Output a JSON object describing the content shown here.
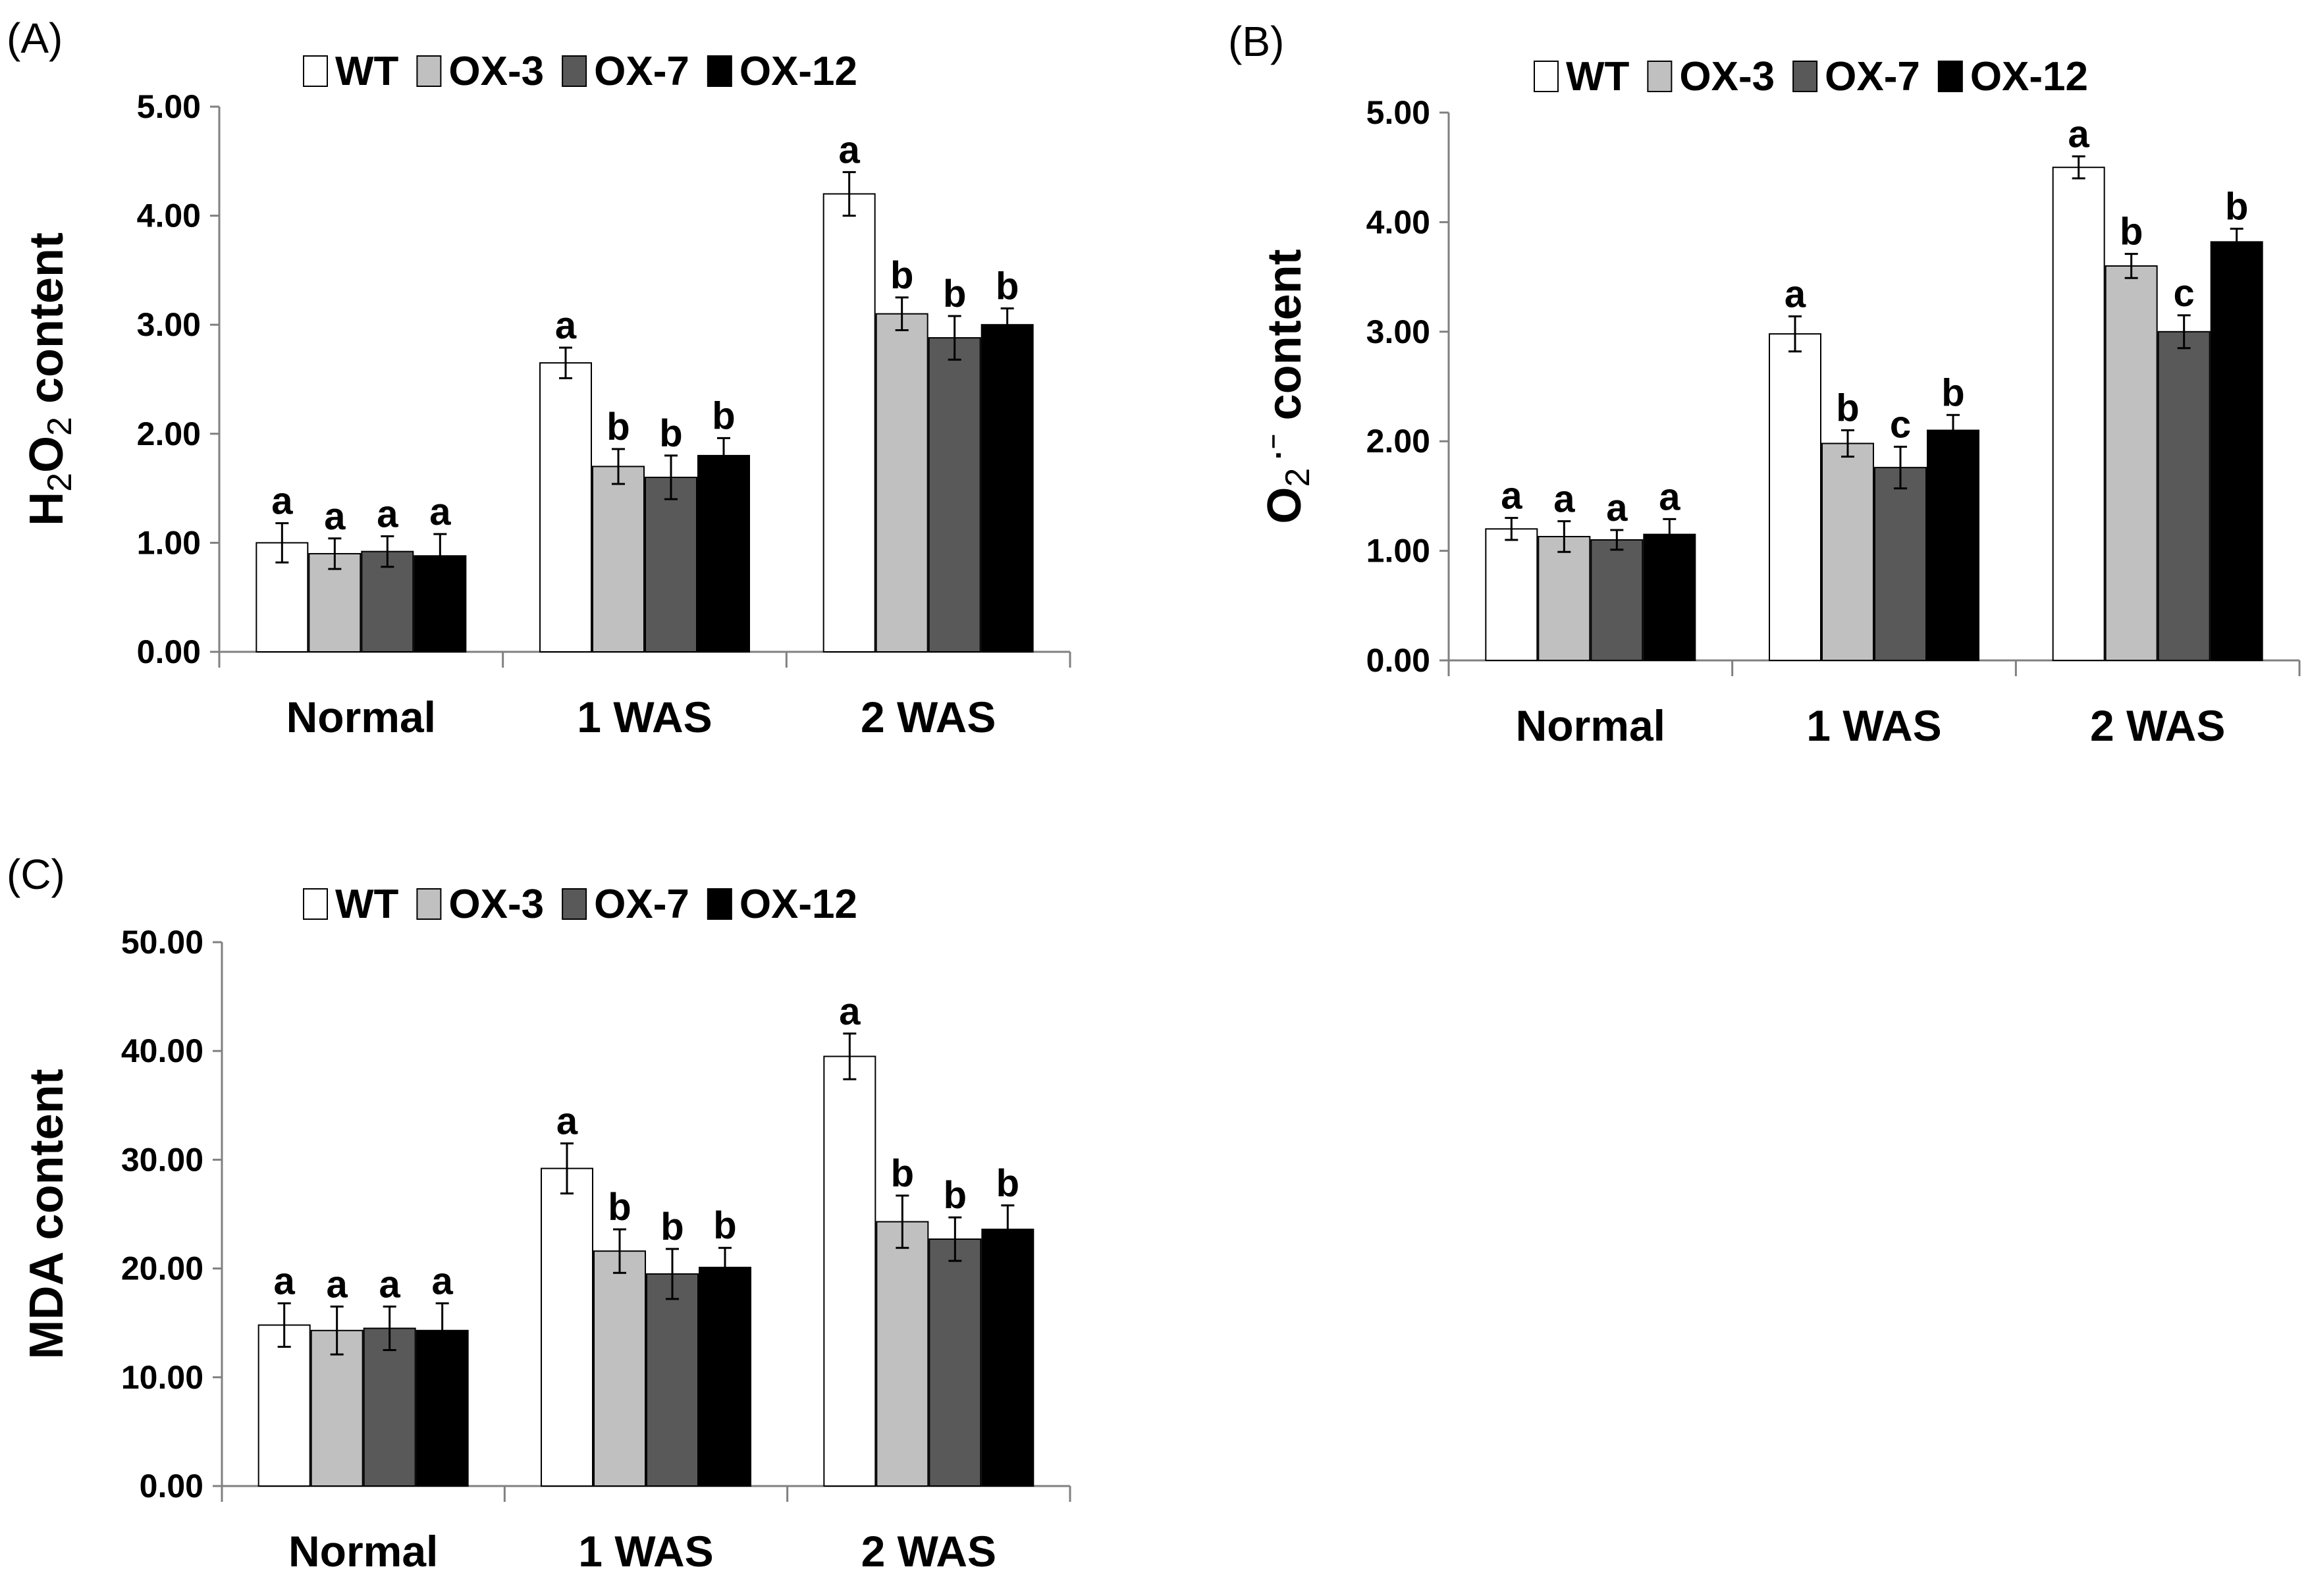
{
  "colors": {
    "WT": "#ffffff",
    "OX-3": "#c0c0c0",
    "OX-7": "#595959",
    "OX-12": "#000000",
    "axis": "#808080",
    "outline": "#000000"
  },
  "chart_data": [
    {
      "type": "bar",
      "panel_label": "(A)",
      "ylabel_parts": [
        {
          "t": "H"
        },
        {
          "t": "2",
          "sub": true
        },
        {
          "t": "O"
        },
        {
          "t": "2",
          "sub": true
        },
        {
          "t": " content"
        }
      ],
      "ylim": [
        0,
        5
      ],
      "yticks": [
        "0.00",
        "1.00",
        "2.00",
        "3.00",
        "4.00",
        "5.00"
      ],
      "ytick_values": [
        0,
        1,
        2,
        3,
        4,
        5
      ],
      "categories": [
        "Normal",
        "1 WAS",
        "2 WAS"
      ],
      "legend": [
        "WT",
        "OX-3",
        "OX-7",
        "OX-12"
      ],
      "legend_position": "top",
      "series": [
        {
          "name": "WT",
          "values": [
            1.0,
            2.65,
            4.2
          ],
          "errors": [
            0.18,
            0.14,
            0.2
          ],
          "letters": [
            "a",
            "a",
            "a"
          ]
        },
        {
          "name": "OX-3",
          "values": [
            0.9,
            1.7,
            3.1
          ],
          "errors": [
            0.14,
            0.16,
            0.15
          ],
          "letters": [
            "a",
            "b",
            "b"
          ]
        },
        {
          "name": "OX-7",
          "values": [
            0.92,
            1.6,
            2.88
          ],
          "errors": [
            0.14,
            0.2,
            0.2
          ],
          "letters": [
            "a",
            "b",
            "b"
          ]
        },
        {
          "name": "OX-12",
          "values": [
            0.88,
            1.8,
            3.0
          ],
          "errors": [
            0.2,
            0.16,
            0.15
          ],
          "letters": [
            "a",
            "b",
            "b"
          ]
        }
      ]
    },
    {
      "type": "bar",
      "panel_label": "(B)",
      "ylabel_parts": [
        {
          "t": "O"
        },
        {
          "t": "2",
          "sub": true
        },
        {
          "t": " ·⁻",
          "sup": true
        },
        {
          "t": " content"
        }
      ],
      "ylim": [
        0,
        5
      ],
      "yticks": [
        "0.00",
        "1.00",
        "2.00",
        "3.00",
        "4.00",
        "5.00"
      ],
      "ytick_values": [
        0,
        1,
        2,
        3,
        4,
        5
      ],
      "categories": [
        "Normal",
        "1 WAS",
        "2 WAS"
      ],
      "legend": [
        "WT",
        "OX-3",
        "OX-7",
        "OX-12"
      ],
      "legend_position": "top",
      "series": [
        {
          "name": "WT",
          "values": [
            1.2,
            2.98,
            4.5
          ],
          "errors": [
            0.1,
            0.16,
            0.1
          ],
          "letters": [
            "a",
            "a",
            "a"
          ]
        },
        {
          "name": "OX-3",
          "values": [
            1.13,
            1.98,
            3.6
          ],
          "errors": [
            0.14,
            0.12,
            0.11
          ],
          "letters": [
            "a",
            "b",
            "b"
          ]
        },
        {
          "name": "OX-7",
          "values": [
            1.1,
            1.76,
            3.0
          ],
          "errors": [
            0.09,
            0.19,
            0.15
          ],
          "letters": [
            "a",
            "c",
            "c"
          ]
        },
        {
          "name": "OX-12",
          "values": [
            1.15,
            2.1,
            3.82
          ],
          "errors": [
            0.14,
            0.14,
            0.12
          ],
          "letters": [
            "a",
            "b",
            "b"
          ]
        }
      ]
    },
    {
      "type": "bar",
      "panel_label": "(C)",
      "ylabel_parts": [
        {
          "t": "MDA content"
        }
      ],
      "ylim": [
        0,
        50
      ],
      "yticks": [
        "0.00",
        "10.00",
        "20.00",
        "30.00",
        "40.00",
        "50.00"
      ],
      "ytick_values": [
        0,
        10,
        20,
        30,
        40,
        50
      ],
      "categories": [
        "Normal",
        "1 WAS",
        "2 WAS"
      ],
      "legend": [
        "WT",
        "OX-3",
        "OX-7",
        "OX-12"
      ],
      "legend_position": "top",
      "series": [
        {
          "name": "WT",
          "values": [
            14.8,
            29.2,
            39.5
          ],
          "errors": [
            2.0,
            2.3,
            2.1
          ],
          "letters": [
            "a",
            "a",
            "a"
          ]
        },
        {
          "name": "OX-3",
          "values": [
            14.3,
            21.6,
            24.3
          ],
          "errors": [
            2.2,
            2.0,
            2.4
          ],
          "letters": [
            "a",
            "b",
            "b"
          ]
        },
        {
          "name": "OX-7",
          "values": [
            14.5,
            19.5,
            22.7
          ],
          "errors": [
            2.0,
            2.3,
            2.0
          ],
          "letters": [
            "a",
            "b",
            "b"
          ]
        },
        {
          "name": "OX-12",
          "values": [
            14.3,
            20.1,
            23.6
          ],
          "errors": [
            2.5,
            1.8,
            2.2
          ],
          "letters": [
            "a",
            "b",
            "b"
          ]
        }
      ]
    }
  ]
}
